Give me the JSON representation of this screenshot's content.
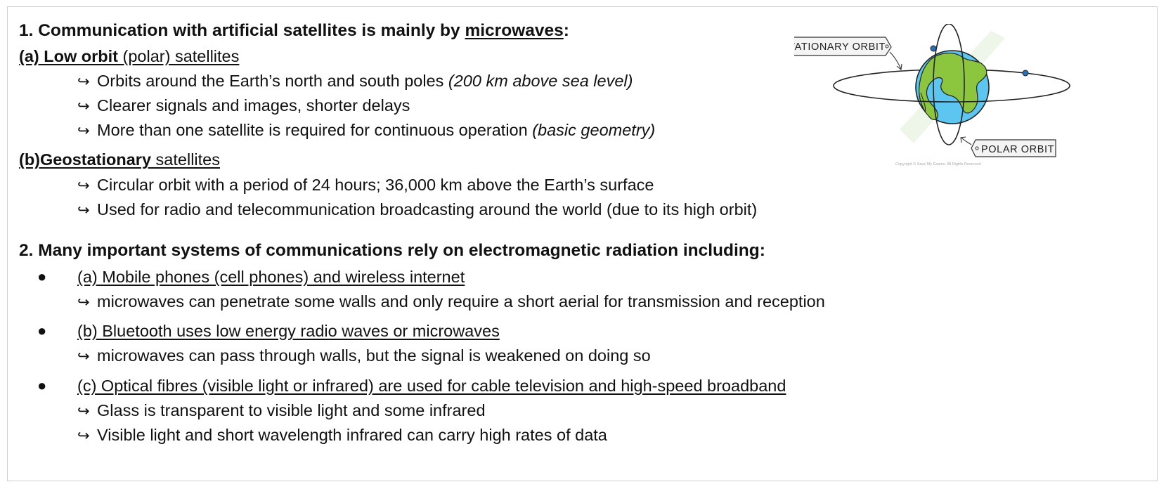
{
  "section1": {
    "heading_start": "1. Communication with artificial satellites is mainly by ",
    "heading_keyword": "microwaves",
    "heading_end": ":",
    "low_orbit": {
      "label_bold": "(a) Low orbit",
      "label_rest": " (polar) satellites",
      "point1_text": "Orbits around the Earth’s north and south poles ",
      "point1_italic": "(200 km above sea level)",
      "point2_text": "Clearer signals and images, shorter delays",
      "point3_text": "More than one satellite is required for continuous operation ",
      "point3_italic": "(basic geometry)"
    },
    "geostationary": {
      "label_bold": "(b)Geostationary",
      "label_rest": " satellites",
      "point1_text": "Circular orbit with a period of 24 hours; 36,000 km above the Earth’s surface",
      "point2_text": "Used for radio and telecommunication broadcasting around the world (due to its high orbit)"
    }
  },
  "section2": {
    "heading": "2. Many important systems of communications rely on electromagnetic radiation including:",
    "bullet_symbol": "●",
    "arrow_symbol": "↪",
    "items": [
      {
        "title": "(a) Mobile phones (cell phones) and wireless internet",
        "points": [
          "microwaves can penetrate some walls and only require a short aerial for transmission and reception"
        ]
      },
      {
        "title": "(b) Bluetooth uses low energy radio waves or microwaves",
        "points": [
          "microwaves can pass through walls, but the signal is weakened on doing so"
        ]
      },
      {
        "title": "(c) Optical fibres (visible light or infrared) are used for cable television and high-speed broadband",
        "points": [
          "Glass is transparent to visible light and some infrared",
          "Visible light and short wavelength infrared can carry high rates of data"
        ]
      }
    ]
  },
  "diagram": {
    "geo_label": "GEOSTATIONARY  ORBIT",
    "polar_label": "POLAR  ORBIT",
    "copyright": "Copyright © Save My Exams. All Rights Reserved",
    "colors": {
      "ocean": "#5cc6f0",
      "land": "#8cc63f",
      "satellite": "#2a6fb8",
      "outline": "#222222",
      "watermark": "#eef6ea"
    }
  }
}
